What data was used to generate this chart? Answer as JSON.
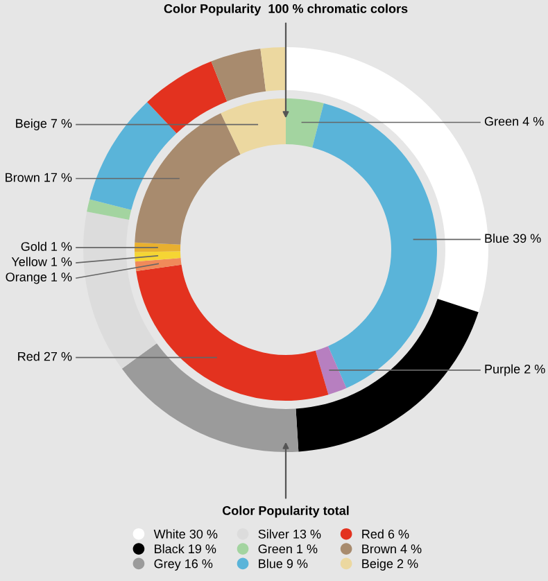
{
  "chart_data": {
    "type": "donut",
    "legend": "bottom",
    "categories": [
      "White",
      "Black",
      "Grey",
      "Silver",
      "Green",
      "Blue",
      "Purple",
      "Red",
      "Orange",
      "Yellow",
      "Gold",
      "Brown",
      "Beige"
    ],
    "colors": [
      "#ffffff",
      "#000000",
      "#9b9b9b",
      "#dcdcdc",
      "#a3d4a0",
      "#5ab4d9",
      "#b77fc0",
      "#e3321f",
      "#f08a5a",
      "#f5d534",
      "#e8b030",
      "#a88b6e",
      "#ecd8a0"
    ],
    "series": [
      {
        "name": "Color Popularity total",
        "values": [
          30,
          19,
          16,
          13,
          1,
          9,
          null,
          6,
          null,
          null,
          null,
          4,
          2
        ],
        "value_labels": [
          "30 %",
          "19 %",
          "16 %",
          "13 %",
          "1 %",
          "9 %",
          null,
          "6 %",
          null,
          null,
          null,
          "4 %",
          "2 %"
        ]
      },
      {
        "name": "Color Popularity  100 % chromatic colors",
        "values": [
          null,
          null,
          null,
          null,
          4,
          39,
          2,
          27,
          1,
          1,
          1,
          17,
          7
        ],
        "value_labels": [
          null,
          null,
          null,
          null,
          "4 %",
          "39 %",
          "2 %",
          "27 %",
          "1 %",
          "1 %",
          "1 %",
          "17 %",
          "7 %"
        ]
      }
    ]
  }
}
